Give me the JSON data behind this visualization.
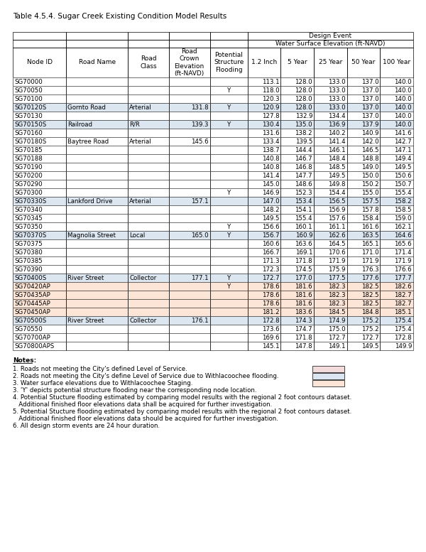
{
  "title": "Table 4.5.4. Sugar Creek Existing Condition Model Results",
  "col_widths_pts": [
    68,
    78,
    52,
    52,
    48,
    42,
    42,
    42,
    42,
    42
  ],
  "rows": [
    [
      "SG70000",
      "",
      "",
      "",
      "",
      "113.1",
      "128.0",
      "133.0",
      "137.0",
      "140.0"
    ],
    [
      "SG70050",
      "",
      "",
      "",
      "Y",
      "118.0",
      "128.0",
      "133.0",
      "137.0",
      "140.0"
    ],
    [
      "SG70100",
      "",
      "",
      "",
      "",
      "120.3",
      "128.0",
      "133.0",
      "137.0",
      "140.0"
    ],
    [
      "SG70120S",
      "Gornto Road",
      "Arterial",
      "131.8",
      "Y",
      "120.9",
      "128.0",
      "133.0",
      "137.0",
      "140.0"
    ],
    [
      "SG70130",
      "",
      "",
      "",
      "",
      "127.8",
      "132.9",
      "134.4",
      "137.0",
      "140.0"
    ],
    [
      "SG70150S",
      "Railroad",
      "R/R",
      "139.3",
      "Y",
      "130.4",
      "135.0",
      "136.9",
      "137.9",
      "140.0"
    ],
    [
      "SG70160",
      "",
      "",
      "",
      "",
      "131.6",
      "138.2",
      "140.2",
      "140.9",
      "141.6"
    ],
    [
      "SG70180S",
      "Baytree Road",
      "Arterial",
      "145.6",
      "",
      "133.4",
      "139.5",
      "141.4",
      "142.0",
      "142.7"
    ],
    [
      "SG70185",
      "",
      "",
      "",
      "",
      "138.7",
      "144.4",
      "146.1",
      "146.5",
      "147.1"
    ],
    [
      "SG70188",
      "",
      "",
      "",
      "",
      "140.8",
      "146.7",
      "148.4",
      "148.8",
      "149.4"
    ],
    [
      "SG70190",
      "",
      "",
      "",
      "",
      "140.8",
      "146.8",
      "148.5",
      "149.0",
      "149.5"
    ],
    [
      "SG70200",
      "",
      "",
      "",
      "",
      "141.4",
      "147.7",
      "149.5",
      "150.0",
      "150.6"
    ],
    [
      "SG70290",
      "",
      "",
      "",
      "",
      "145.0",
      "148.6",
      "149.8",
      "150.2",
      "150.7"
    ],
    [
      "SG70300",
      "",
      "",
      "",
      "Y",
      "146.9",
      "152.3",
      "154.4",
      "155.0",
      "155.4"
    ],
    [
      "SG70330S",
      "Lankford Drive",
      "Arterial",
      "157.1",
      "",
      "147.0",
      "153.4",
      "156.5",
      "157.5",
      "158.2"
    ],
    [
      "SG70340",
      "",
      "",
      "",
      "",
      "148.2",
      "154.1",
      "156.9",
      "157.8",
      "158.5"
    ],
    [
      "SG70345",
      "",
      "",
      "",
      "",
      "149.5",
      "155.4",
      "157.6",
      "158.4",
      "159.0"
    ],
    [
      "SG70350",
      "",
      "",
      "",
      "Y",
      "156.6",
      "160.1",
      "161.1",
      "161.6",
      "162.1"
    ],
    [
      "SG70370S",
      "Magnolia Street",
      "Local",
      "165.0",
      "Y",
      "156.7",
      "160.9",
      "162.6",
      "163.5",
      "164.6"
    ],
    [
      "SG70375",
      "",
      "",
      "",
      "",
      "160.6",
      "163.6",
      "164.5",
      "165.1",
      "165.6"
    ],
    [
      "SG70380",
      "",
      "",
      "",
      "",
      "166.7",
      "169.1",
      "170.6",
      "171.0",
      "171.4"
    ],
    [
      "SG70385",
      "",
      "",
      "",
      "",
      "171.3",
      "171.8",
      "171.9",
      "171.9",
      "171.9"
    ],
    [
      "SG70390",
      "",
      "",
      "",
      "",
      "172.3",
      "174.5",
      "175.9",
      "176.3",
      "176.6"
    ],
    [
      "SG70400S",
      "River Street",
      "Collector",
      "177.1",
      "Y",
      "172.7",
      "177.0",
      "177.5",
      "177.6",
      "177.7"
    ],
    [
      "SG70420AP",
      "",
      "",
      "",
      "Y",
      "178.6",
      "181.6",
      "182.3",
      "182.5",
      "182.6"
    ],
    [
      "SG70435AP",
      "",
      "",
      "",
      "",
      "178.6",
      "181.6",
      "182.3",
      "182.5",
      "182.7"
    ],
    [
      "SG70445AP",
      "",
      "",
      "",
      "",
      "178.6",
      "181.6",
      "182.3",
      "182.5",
      "182.7"
    ],
    [
      "SG70450AP",
      "",
      "",
      "",
      "",
      "181.2",
      "183.6",
      "184.5",
      "184.8",
      "185.1"
    ],
    [
      "SG70500S",
      "River Street",
      "Collector",
      "176.1",
      "",
      "172.8",
      "174.3",
      "174.9",
      "175.2",
      "175.4"
    ],
    [
      "SG70550",
      "",
      "",
      "",
      "",
      "173.6",
      "174.7",
      "175.0",
      "175.2",
      "175.4"
    ],
    [
      "SG70700AP",
      "",
      "",
      "",
      "",
      "169.6",
      "171.8",
      "172.7",
      "172.7",
      "172.8"
    ],
    [
      "SG70800APS",
      "",
      "",
      "",
      "",
      "145.1",
      "147.8",
      "149.1",
      "149.5",
      "149.9"
    ]
  ],
  "highlight_blue": [
    "SG70120S",
    "SG70150S",
    "SG70330S",
    "SG70370S",
    "SG70400S",
    "SG70500S"
  ],
  "highlight_peach": [
    "SG70420AP",
    "SG70435AP",
    "SG70445AP",
    "SG70450AP"
  ],
  "legend_pink_color": "#f2dcdb",
  "legend_blue_color": "#dce6f1",
  "legend_peach_color": "#fce4d6",
  "notes": [
    "1. Roads not meeting the City's defined Level of Service.",
    "2. Roads not meeting the City's define Level of Service due to Withlacoochee flooding.",
    "3. Water surface elevations due to Withlacoochee Staging.",
    "3. 'Y' depicts potential structure flooding near the corresponding node location.",
    "4. Potential Stucture flooding estimated by comparing model results with the regional 2 foot contours dataset.",
    "   Additional finished floor elevations data shall be acquired for further investigation.",
    "5. Potential Stucture flooding estimated by comparing model results with the regional 2 foot contours dataset.",
    "   Additional finished floor elevations data should be acquired for further investigation.",
    "6. All design storm events are 24 hour duration."
  ]
}
